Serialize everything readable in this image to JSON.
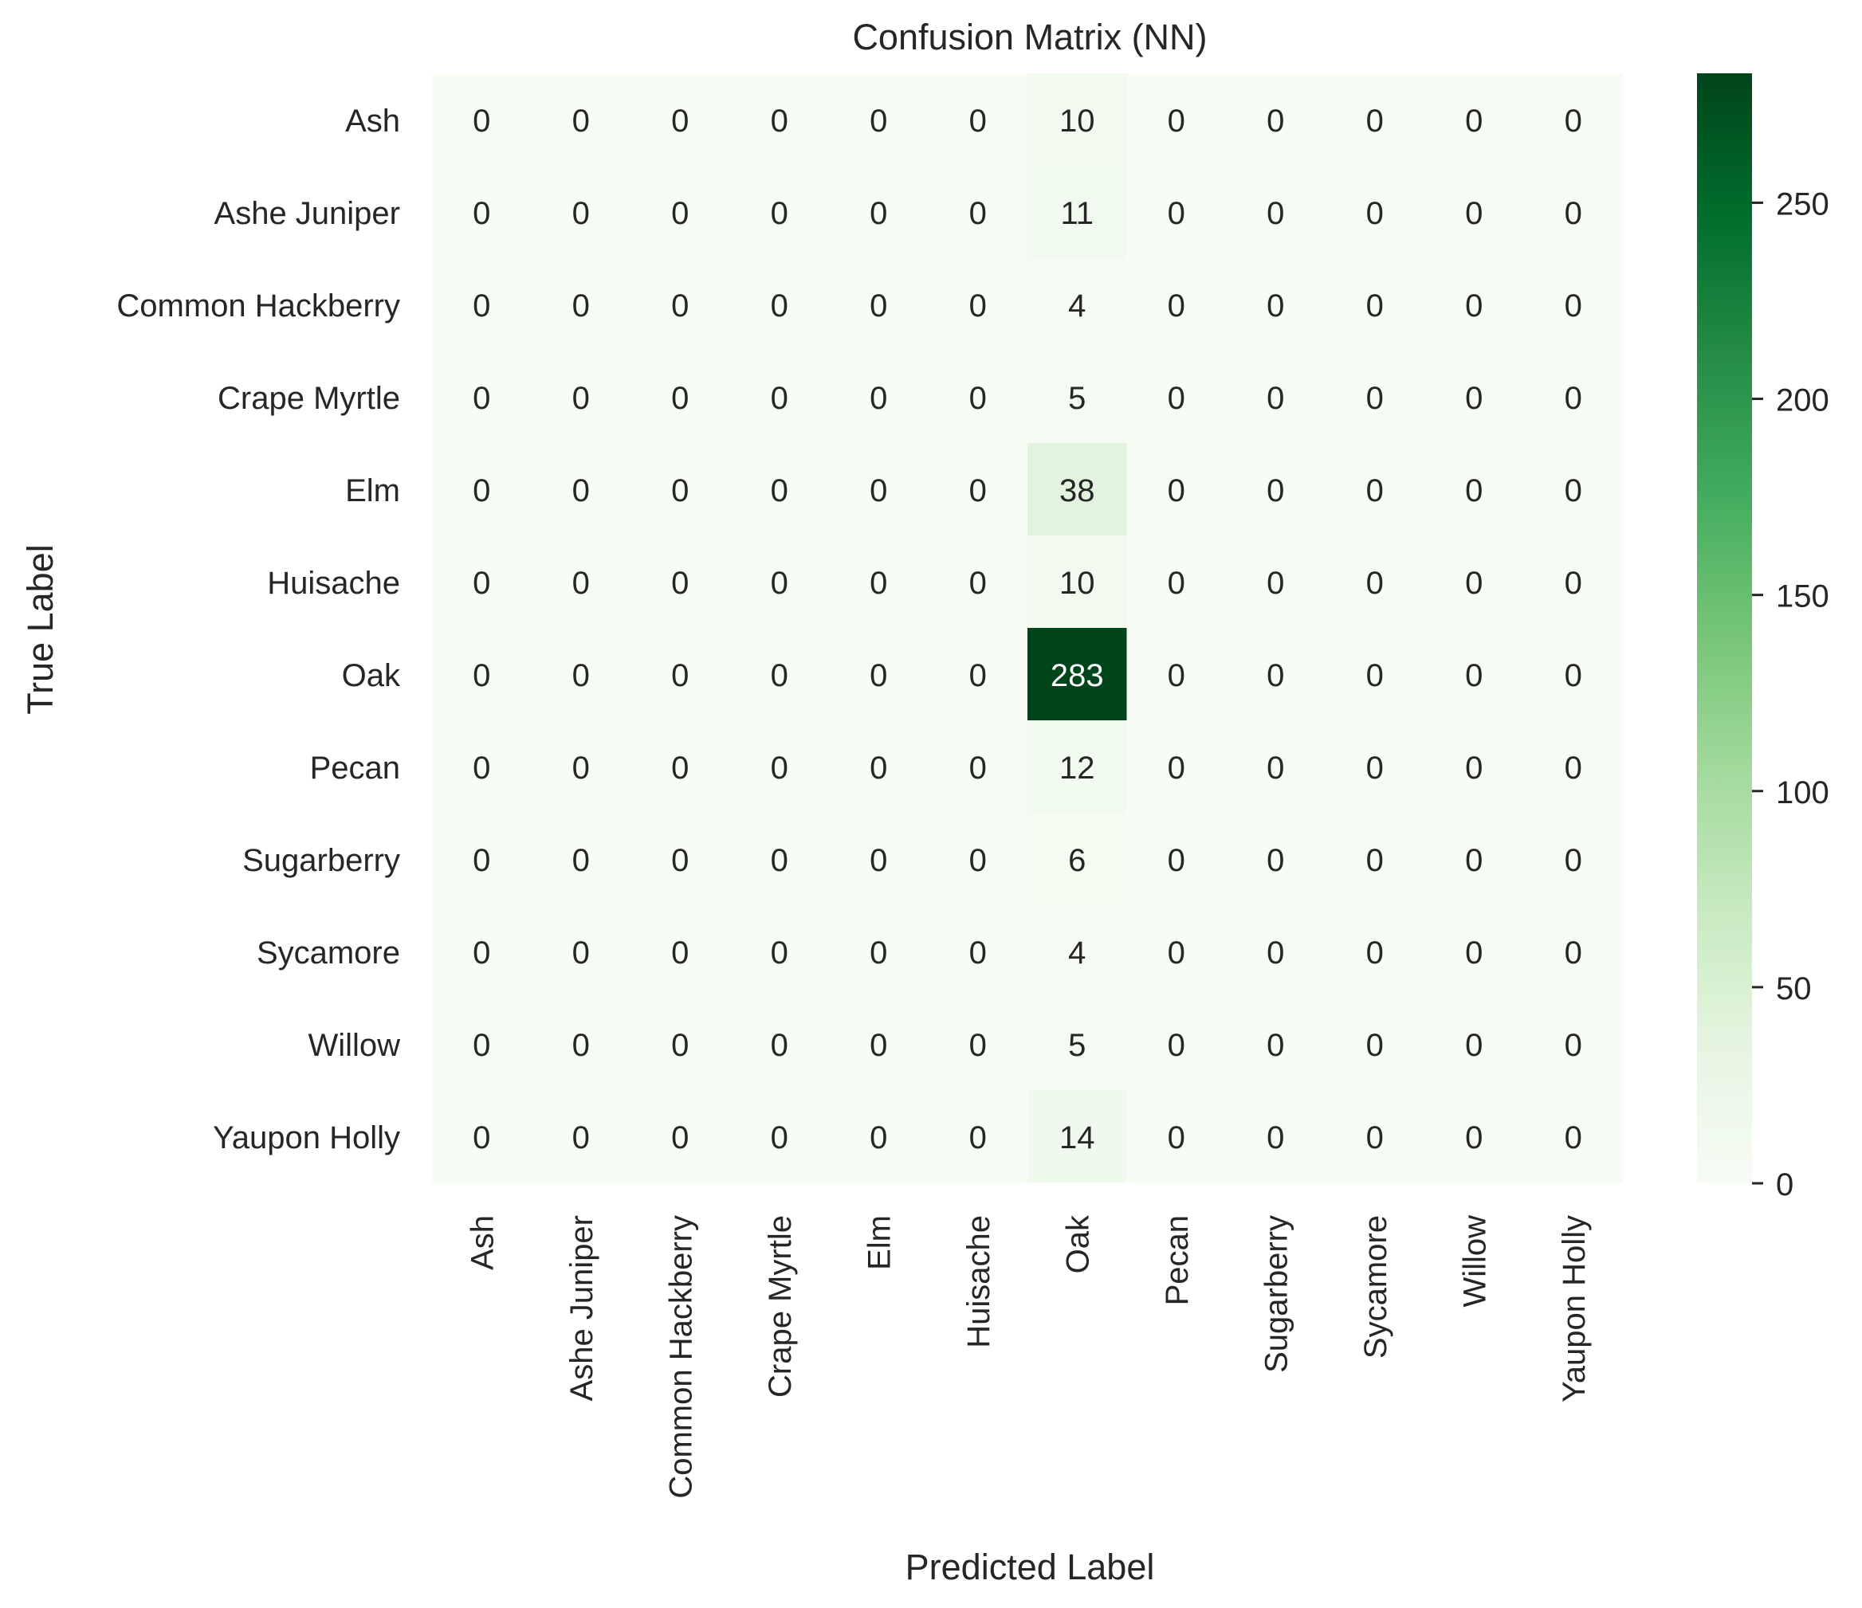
{
  "chart_data": {
    "type": "heatmap",
    "title": "Confusion Matrix (NN)",
    "xlabel": "Predicted Label",
    "ylabel": "True Label",
    "row_labels": [
      "Ash",
      "Ashe Juniper",
      "Common Hackberry",
      "Crape Myrtle",
      "Elm",
      "Huisache",
      "Oak",
      "Pecan",
      "Sugarberry",
      "Sycamore",
      "Willow",
      "Yaupon Holly"
    ],
    "col_labels": [
      "Ash",
      "Ashe Juniper",
      "Common Hackberry",
      "Crape Myrtle",
      "Elm",
      "Huisache",
      "Oak",
      "Pecan",
      "Sugarberry",
      "Sycamore",
      "Willow",
      "Yaupon Holly"
    ],
    "matrix": [
      [
        0,
        0,
        0,
        0,
        0,
        0,
        10,
        0,
        0,
        0,
        0,
        0
      ],
      [
        0,
        0,
        0,
        0,
        0,
        0,
        11,
        0,
        0,
        0,
        0,
        0
      ],
      [
        0,
        0,
        0,
        0,
        0,
        0,
        4,
        0,
        0,
        0,
        0,
        0
      ],
      [
        0,
        0,
        0,
        0,
        0,
        0,
        5,
        0,
        0,
        0,
        0,
        0
      ],
      [
        0,
        0,
        0,
        0,
        0,
        0,
        38,
        0,
        0,
        0,
        0,
        0
      ],
      [
        0,
        0,
        0,
        0,
        0,
        0,
        10,
        0,
        0,
        0,
        0,
        0
      ],
      [
        0,
        0,
        0,
        0,
        0,
        0,
        283,
        0,
        0,
        0,
        0,
        0
      ],
      [
        0,
        0,
        0,
        0,
        0,
        0,
        12,
        0,
        0,
        0,
        0,
        0
      ],
      [
        0,
        0,
        0,
        0,
        0,
        0,
        6,
        0,
        0,
        0,
        0,
        0
      ],
      [
        0,
        0,
        0,
        0,
        0,
        0,
        4,
        0,
        0,
        0,
        0,
        0
      ],
      [
        0,
        0,
        0,
        0,
        0,
        0,
        5,
        0,
        0,
        0,
        0,
        0
      ],
      [
        0,
        0,
        0,
        0,
        0,
        0,
        14,
        0,
        0,
        0,
        0,
        0
      ]
    ],
    "colormap": "Greens",
    "color_range": [
      0,
      283
    ],
    "colorbar_ticks": [
      0,
      50,
      100,
      150,
      200,
      250
    ],
    "colors": {
      "low": "#f7fcf5",
      "high": "#00441b"
    }
  }
}
